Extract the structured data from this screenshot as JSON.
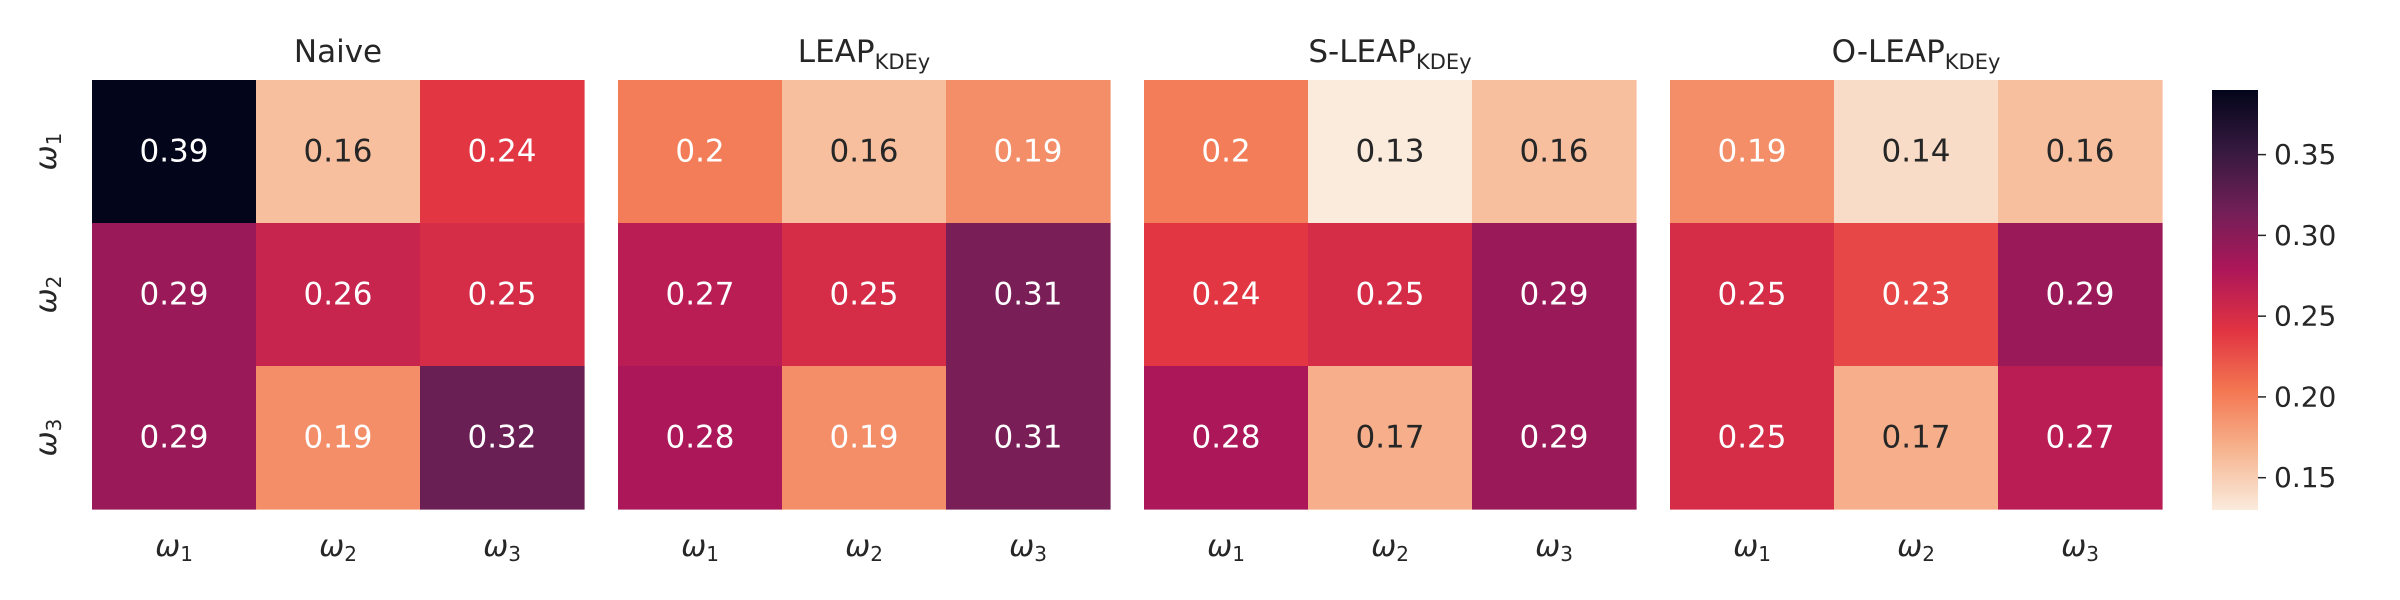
{
  "chart_data": {
    "type": "heatmap",
    "row_labels": [
      "ω1",
      "ω2",
      "ω3"
    ],
    "col_labels": [
      "ω1",
      "ω2",
      "ω3"
    ],
    "panels": [
      {
        "title": "Naive",
        "title_subscript": "",
        "values": [
          [
            0.39,
            0.16,
            0.24
          ],
          [
            0.29,
            0.26,
            0.25
          ],
          [
            0.29,
            0.19,
            0.32
          ]
        ],
        "cell_text": [
          [
            "0.39",
            "0.16",
            "0.24"
          ],
          [
            "0.29",
            "0.26",
            "0.25"
          ],
          [
            "0.29",
            "0.19",
            "0.32"
          ]
        ]
      },
      {
        "title": "LEAP",
        "title_subscript": "KDEy",
        "values": [
          [
            0.2,
            0.16,
            0.19
          ],
          [
            0.27,
            0.25,
            0.31
          ],
          [
            0.28,
            0.19,
            0.31
          ]
        ],
        "cell_text": [
          [
            "0.2",
            "0.16",
            "0.19"
          ],
          [
            "0.27",
            "0.25",
            "0.31"
          ],
          [
            "0.28",
            "0.19",
            "0.31"
          ]
        ]
      },
      {
        "title": "S-LEAP",
        "title_subscript": "KDEy",
        "values": [
          [
            0.2,
            0.13,
            0.16
          ],
          [
            0.24,
            0.25,
            0.29
          ],
          [
            0.28,
            0.17,
            0.29
          ]
        ],
        "cell_text": [
          [
            "0.2",
            "0.13",
            "0.16"
          ],
          [
            "0.24",
            "0.25",
            "0.29"
          ],
          [
            "0.28",
            "0.17",
            "0.29"
          ]
        ]
      },
      {
        "title": "O-LEAP",
        "title_subscript": "KDEy",
        "values": [
          [
            0.19,
            0.14,
            0.16
          ],
          [
            0.25,
            0.23,
            0.29
          ],
          [
            0.25,
            0.17,
            0.27
          ]
        ],
        "cell_text": [
          [
            "0.19",
            "0.14",
            "0.16"
          ],
          [
            "0.25",
            "0.23",
            "0.29"
          ],
          [
            "0.25",
            "0.17",
            "0.27"
          ]
        ]
      }
    ],
    "colorbar": {
      "min": 0.13,
      "max": 0.39,
      "ticks": [
        0.15,
        0.2,
        0.25,
        0.3,
        0.35
      ],
      "tick_labels": [
        "0.15",
        "0.20",
        "0.25",
        "0.30",
        "0.35"
      ],
      "colormap": "rocket_r",
      "colors": [
        "#faebdd",
        "#f6b48f",
        "#f37651",
        "#e13342",
        "#ad1759",
        "#701f57",
        "#35193e",
        "#03051a"
      ]
    },
    "grid": false,
    "legend": "colorbar-right"
  }
}
